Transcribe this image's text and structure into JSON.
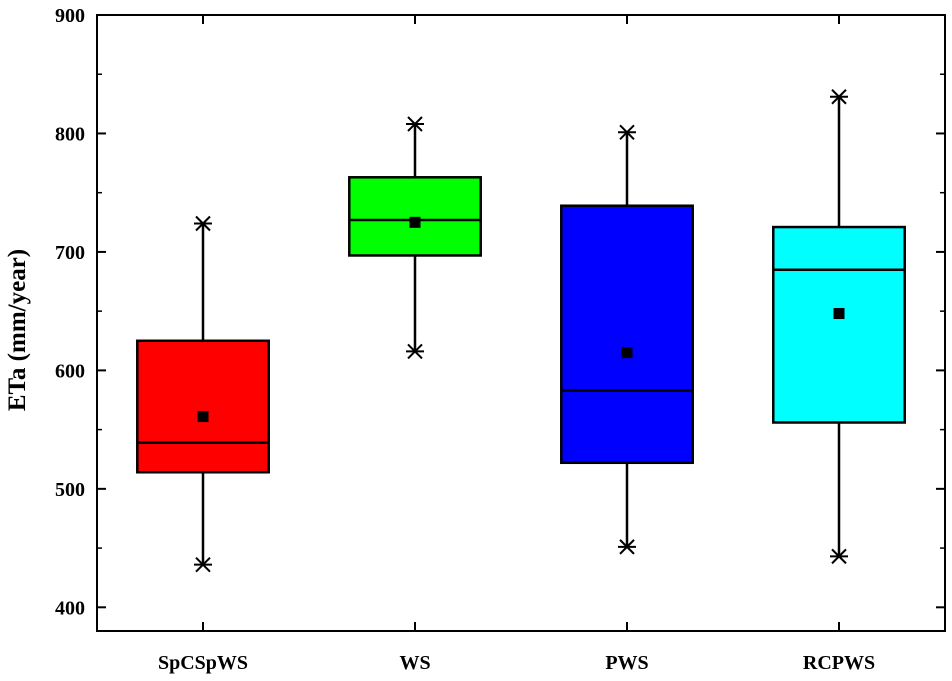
{
  "chart_data": {
    "type": "box",
    "title": "",
    "xlabel": "",
    "ylabel": "ETa (mm/year)",
    "ylim": [
      380,
      900
    ],
    "yticks": [
      400,
      500,
      600,
      700,
      800,
      900
    ],
    "grid": false,
    "legend": "none",
    "categories": [
      "SpCSpWS",
      "WS",
      "PWS",
      "RCPWS"
    ],
    "boxes": [
      {
        "category": "SpCSpWS",
        "color": "#ff0000",
        "min": 436,
        "q1": 514,
        "median": 539,
        "q3": 625,
        "max": 724,
        "mean": 561
      },
      {
        "category": "WS",
        "color": "#00ff00",
        "min": 616,
        "q1": 697,
        "median": 727,
        "q3": 763,
        "max": 808,
        "mean": 725
      },
      {
        "category": "PWS",
        "color": "#0000ff",
        "min": 451,
        "q1": 522,
        "median": 583,
        "q3": 739,
        "max": 801,
        "mean": 615
      },
      {
        "category": "RCPWS",
        "color": "#00ffff",
        "min": 443,
        "q1": 556,
        "median": 685,
        "q3": 721,
        "max": 831,
        "mean": 648
      }
    ]
  }
}
